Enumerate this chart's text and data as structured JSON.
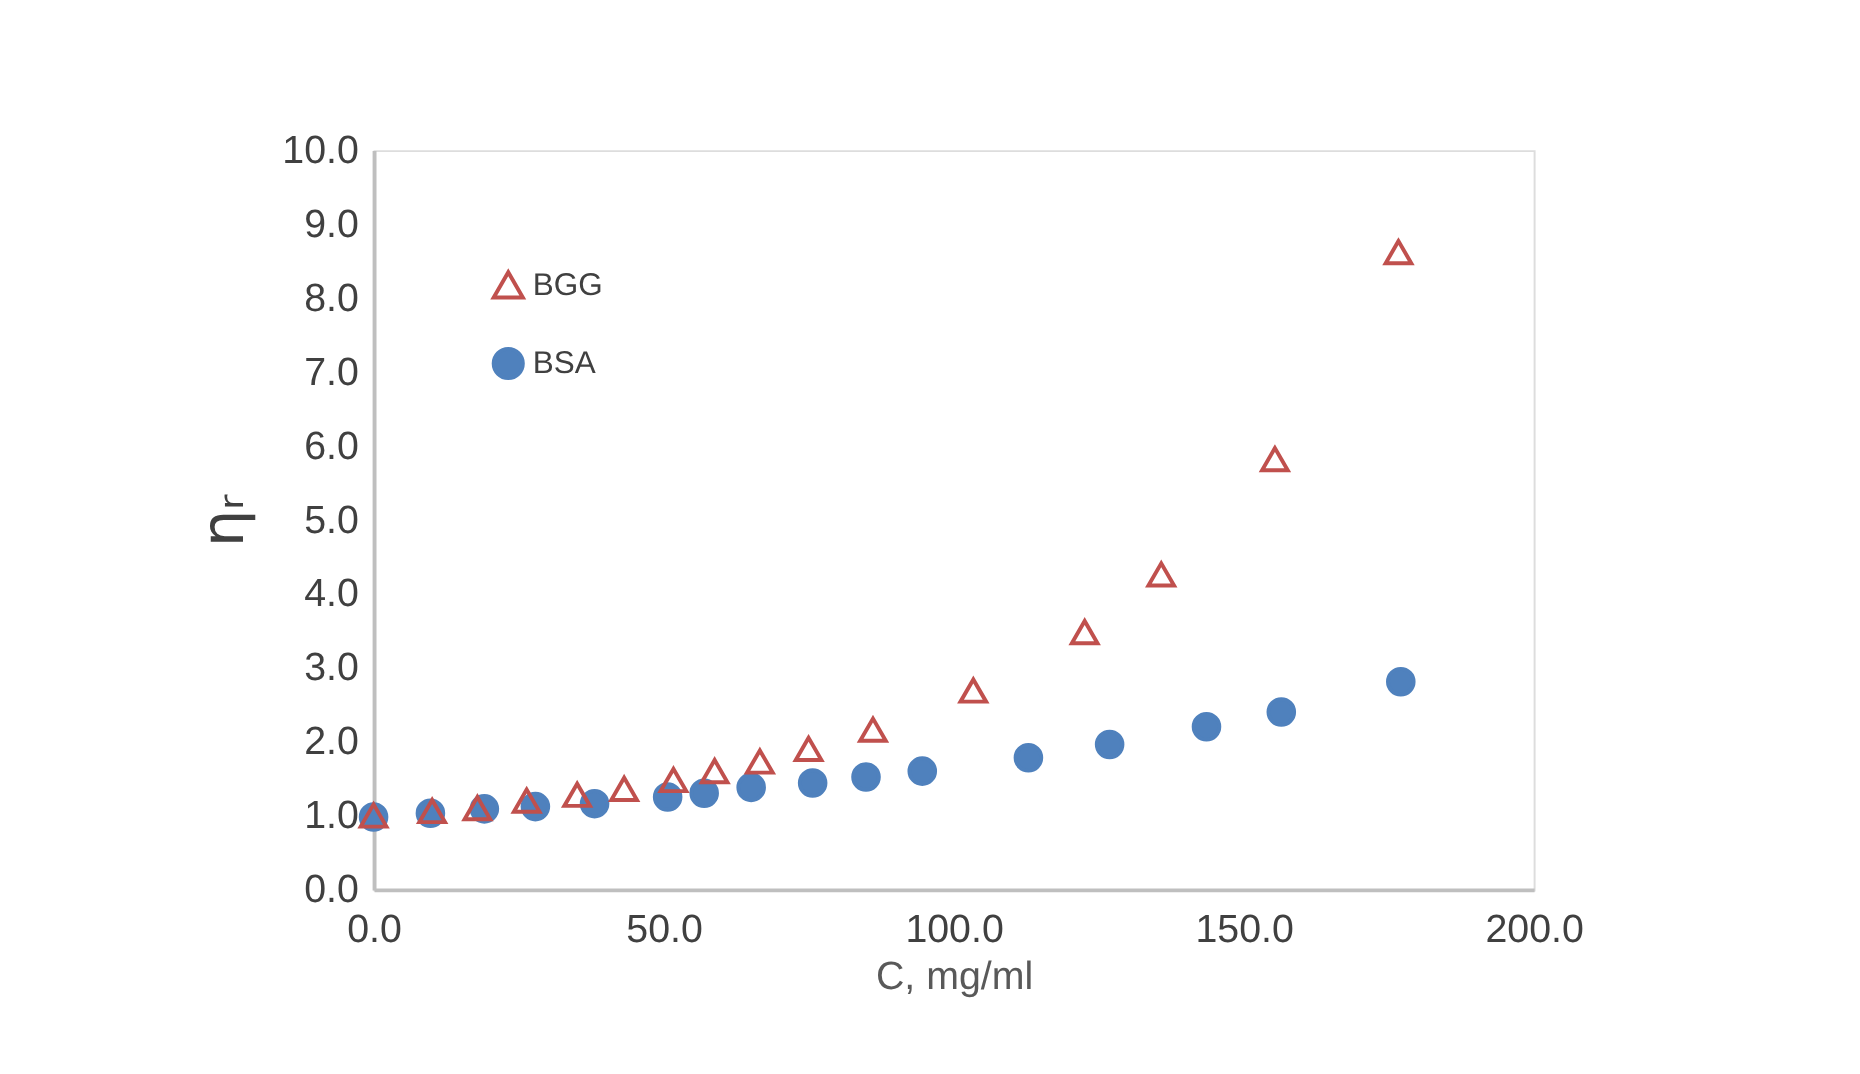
{
  "chart_data": {
    "type": "scatter",
    "xlabel": "C, mg/ml",
    "ylabel": "ηᵣ",
    "xlim": [
      0,
      200
    ],
    "xticks": [
      {
        "value": 0,
        "label": "0.0"
      },
      {
        "value": 50,
        "label": "50.0"
      },
      {
        "value": 100,
        "label": "100.0"
      },
      {
        "value": 150,
        "label": "150.0"
      },
      {
        "value": 200,
        "label": "200.0"
      }
    ],
    "ylim": [
      0,
      10
    ],
    "yticks": [
      {
        "value": 0,
        "label": "0.0"
      },
      {
        "value": 1,
        "label": "1.0"
      },
      {
        "value": 2,
        "label": "2.0"
      },
      {
        "value": 3,
        "label": "3.0"
      },
      {
        "value": 4,
        "label": "4.0"
      },
      {
        "value": 5,
        "label": "5.0"
      },
      {
        "value": 6,
        "label": "6.0"
      },
      {
        "value": 7,
        "label": "7.0"
      },
      {
        "value": 8,
        "label": "8.0"
      },
      {
        "value": 9,
        "label": "9.0"
      },
      {
        "value": 10,
        "label": "10.0"
      }
    ],
    "grid": false,
    "legend": "top left",
    "series": [
      {
        "name": "BGG",
        "color": "#c0504d",
        "marker": "triangle",
        "x": [
          0,
          10.1,
          17.9,
          26.4,
          35.1,
          43.2,
          51.7,
          58.8,
          66.6,
          75.0,
          86.1,
          103.4,
          122.6,
          135.8,
          155.4,
          176.7
        ],
        "values": [
          1.0,
          1.06,
          1.1,
          1.2,
          1.28,
          1.36,
          1.48,
          1.6,
          1.73,
          1.9,
          2.16,
          2.69,
          3.48,
          4.26,
          5.82,
          8.62
        ]
      },
      {
        "name": "BSA",
        "color": "#4f81bd",
        "marker": "circle",
        "x": [
          0,
          9.8,
          19.1,
          27.9,
          38.1,
          50.7,
          57.0,
          65.1,
          75.7,
          84.9,
          94.6,
          112.9,
          126.9,
          143.6,
          156.5,
          177.1
        ],
        "values": [
          0.98,
          1.03,
          1.09,
          1.12,
          1.16,
          1.25,
          1.3,
          1.38,
          1.44,
          1.52,
          1.6,
          1.78,
          1.96,
          2.2,
          2.4,
          2.81
        ]
      }
    ]
  }
}
